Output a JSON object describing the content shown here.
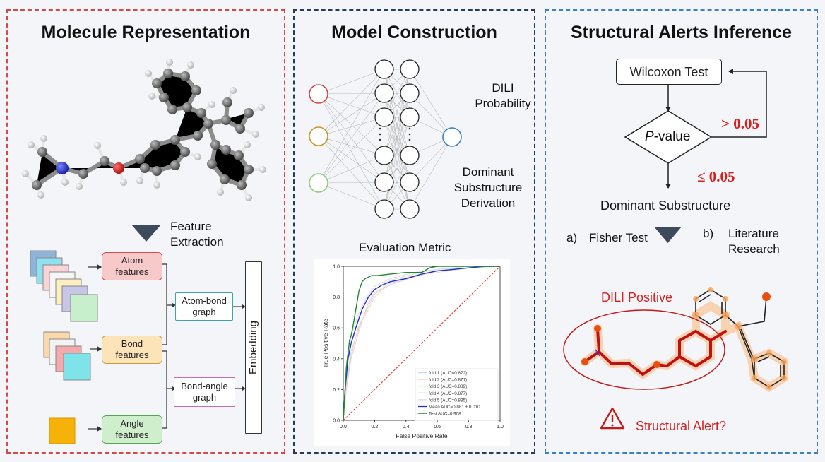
{
  "panels": {
    "molecule": {
      "title": "Molecule Representation",
      "feature_extraction": [
        "Feature",
        "Extraction"
      ],
      "atom_features": [
        "Atom",
        "features"
      ],
      "bond_features": [
        "Bond",
        "features"
      ],
      "angle_features": [
        "Angle",
        "features"
      ],
      "atom_bond_graph": [
        "Atom-bond",
        "graph"
      ],
      "bond_angle_graph": [
        "Bond-angle",
        "graph"
      ],
      "embedding": "Embedding"
    },
    "model": {
      "title": "Model Construction",
      "dili_probability": [
        "DILI",
        "Probability"
      ],
      "dominant_derivation": [
        "Dominant",
        "Substructure",
        "Derivation"
      ],
      "evaluation_metric": "Evaluation Metric"
    },
    "alerts": {
      "title": "Structural Alerts Inference",
      "wilcoxon": "Wilcoxon Test",
      "p_value_italic": "P",
      "p_value_rest": "-value",
      "gt": "> 0.05",
      "le": "≤ 0.05",
      "dominant_substructure": "Dominant Substructure",
      "fisher_prefix": "a)",
      "fisher": "Fisher Test",
      "literature_prefix": "b)",
      "literature": [
        "Literature",
        "Research"
      ],
      "dili_positive": "DILI Positive",
      "structural_alert": "Structural Alert?"
    }
  },
  "colors": {
    "molecule_border": "#d24a4a",
    "model_border": "#273a5a",
    "alerts_border": "#3b7fc4",
    "alert_red": "#d61f1f",
    "atom_box": "#f8c9c9",
    "bond_box": "#fde3b8",
    "angle_box": "#cfeecb"
  },
  "chart_data": {
    "type": "line",
    "xlabel": "False Positive Rate",
    "ylabel": "True Positive Rate",
    "xlim": [
      0.0,
      1.0
    ],
    "ylim": [
      0.0,
      1.0
    ],
    "xticks": [
      "0.0",
      "0.2",
      "0.4",
      "0.6",
      "0.8",
      "1.0"
    ],
    "yticks": [
      "0.0",
      "0.2",
      "0.4",
      "0.6",
      "0.8",
      "1.0"
    ],
    "legend_position": "lower-right",
    "series": [
      {
        "name": "fold 1 (AUC=0.872)",
        "color": "#c9d9ef",
        "x": [
          0,
          0.02,
          0.05,
          0.1,
          0.15,
          0.2,
          0.3,
          0.45,
          0.6,
          0.8,
          1
        ],
        "y": [
          0,
          0.25,
          0.45,
          0.6,
          0.72,
          0.82,
          0.88,
          0.93,
          0.97,
          0.99,
          1
        ]
      },
      {
        "name": "fold 2 (AUC=0.871)",
        "color": "#f4d8b5",
        "x": [
          0,
          0.02,
          0.05,
          0.1,
          0.15,
          0.2,
          0.3,
          0.45,
          0.6,
          0.8,
          1
        ],
        "y": [
          0,
          0.22,
          0.42,
          0.62,
          0.7,
          0.8,
          0.9,
          0.94,
          0.96,
          0.99,
          1
        ]
      },
      {
        "name": "fold 3 (AUC=0.889)",
        "color": "#cfe8c9",
        "x": [
          0,
          0.02,
          0.05,
          0.1,
          0.15,
          0.2,
          0.3,
          0.45,
          0.6,
          0.8,
          1
        ],
        "y": [
          0,
          0.3,
          0.5,
          0.68,
          0.78,
          0.85,
          0.91,
          0.95,
          0.98,
          0.99,
          1
        ]
      },
      {
        "name": "fold 4 (AUC=0.877)",
        "color": "#f1c9d0",
        "x": [
          0,
          0.02,
          0.05,
          0.1,
          0.15,
          0.2,
          0.3,
          0.45,
          0.6,
          0.8,
          1
        ],
        "y": [
          0,
          0.2,
          0.4,
          0.58,
          0.74,
          0.83,
          0.89,
          0.93,
          0.97,
          0.99,
          1
        ]
      },
      {
        "name": "fold 5 (AUC=0.895)",
        "color": "#e1d3ec",
        "x": [
          0,
          0.02,
          0.05,
          0.1,
          0.15,
          0.2,
          0.3,
          0.45,
          0.6,
          0.8,
          1
        ],
        "y": [
          0,
          0.32,
          0.55,
          0.7,
          0.8,
          0.87,
          0.92,
          0.96,
          0.98,
          1,
          1
        ]
      },
      {
        "name": "Mean AUC=0.881 ± 0.010",
        "color": "#1f2fd6",
        "x": [
          0,
          0.01,
          0.03,
          0.05,
          0.08,
          0.12,
          0.16,
          0.2,
          0.25,
          0.3,
          0.4,
          0.5,
          0.6,
          0.7,
          0.8,
          0.9,
          1
        ],
        "y": [
          0,
          0.18,
          0.4,
          0.5,
          0.6,
          0.72,
          0.8,
          0.85,
          0.88,
          0.9,
          0.92,
          0.95,
          0.97,
          0.98,
          0.99,
          1,
          1
        ]
      },
      {
        "name": "Test AUC=0.908",
        "color": "#1d8a2a",
        "x": [
          0,
          0.02,
          0.04,
          0.05,
          0.06,
          0.08,
          0.1,
          0.12,
          0.14,
          0.18,
          0.22,
          0.3,
          0.4,
          0.5,
          0.55,
          0.6,
          0.8,
          1
        ],
        "y": [
          0,
          0.35,
          0.52,
          0.55,
          0.6,
          0.72,
          0.84,
          0.9,
          0.92,
          0.94,
          0.94,
          0.95,
          0.96,
          0.96,
          0.99,
          1,
          1,
          1
        ]
      },
      {
        "name": "",
        "color": "#e0443a",
        "dashed": true,
        "x": [
          0,
          1
        ],
        "y": [
          0,
          1
        ]
      }
    ]
  }
}
